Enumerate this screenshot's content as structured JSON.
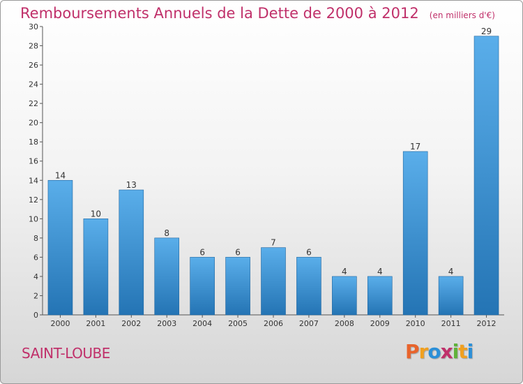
{
  "header": {
    "title": "Remboursements Annuels de la Dette de 2000 à 2012",
    "unit": "(en milliers d'€)"
  },
  "footer": {
    "place": "SAINT-LOUBE",
    "brand": "Proxiti",
    "brand_colors": [
      "#e8642c",
      "#f0a020",
      "#2a8fd8",
      "#c0306a",
      "#5fb23a",
      "#f0a020",
      "#2a8fd8"
    ]
  },
  "colors": {
    "accent": "#c0306a",
    "bar_top": "#5aaeea",
    "bar_bottom": "#2474b4"
  },
  "chart_data": {
    "type": "bar",
    "categories": [
      "2000",
      "2001",
      "2002",
      "2003",
      "2004",
      "2005",
      "2006",
      "2007",
      "2008",
      "2009",
      "2010",
      "2011",
      "2012"
    ],
    "values": [
      14,
      10,
      13,
      8,
      6,
      6,
      7,
      6,
      4,
      4,
      17,
      4,
      29
    ],
    "yticks": [
      "0",
      "2",
      "4",
      "6",
      "8",
      "10",
      "12",
      "14",
      "16",
      "18",
      "20",
      "22",
      "24",
      "26",
      "28",
      "30"
    ],
    "ylim": [
      0,
      30
    ],
    "grid": false,
    "legend": "none"
  }
}
